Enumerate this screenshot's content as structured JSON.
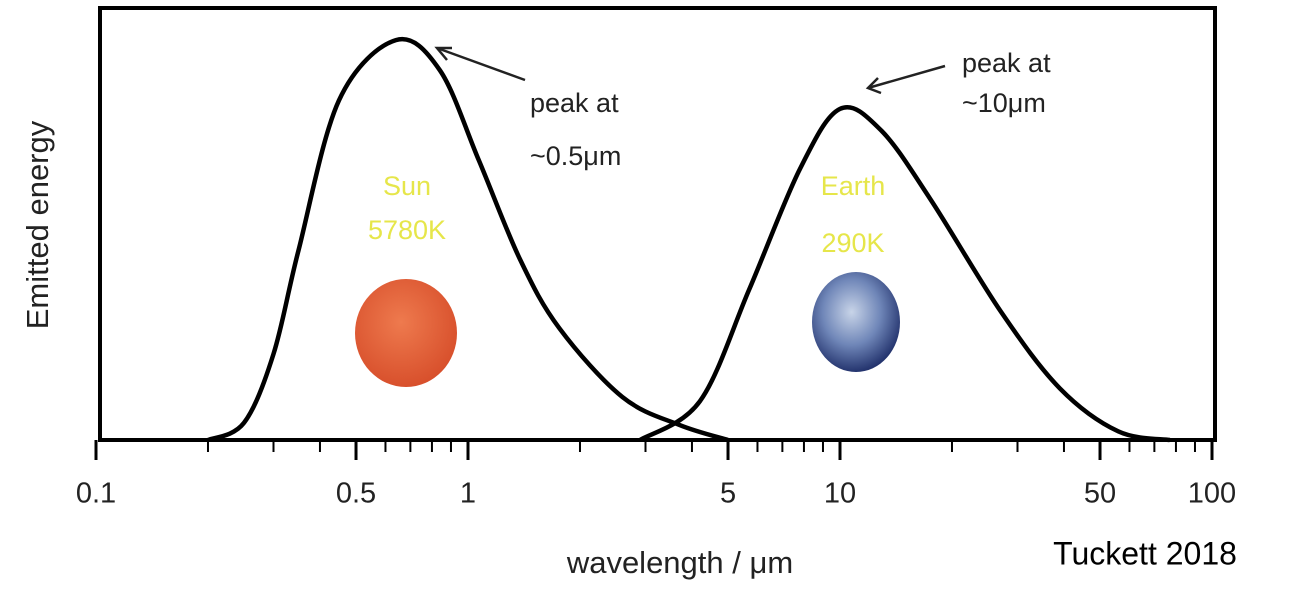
{
  "chart_data": {
    "type": "line",
    "xlabel": "wavelength / μm",
    "ylabel": "Emitted energy",
    "xscale": "log",
    "xlim": [
      0.1,
      100
    ],
    "xticks": [
      0.1,
      0.5,
      1,
      5,
      10,
      50,
      100
    ],
    "minor_xticks": [
      0.2,
      0.3,
      0.4,
      0.6,
      0.7,
      0.8,
      0.9,
      2,
      3,
      4,
      6,
      7,
      8,
      9,
      20,
      30,
      40,
      60,
      70,
      80,
      90
    ],
    "ylim": [
      0,
      1
    ],
    "series": [
      {
        "name": "Sun",
        "temperature": "5780K",
        "color": "#000000",
        "label_color": "#e6e64a",
        "annotation": [
          "peak at",
          "~0.5μm"
        ],
        "x": [
          0.2,
          0.25,
          0.3,
          0.35,
          0.45,
          0.64,
          0.84,
          1.07,
          1.38,
          1.76,
          2.6,
          3.7,
          5
        ],
        "values": [
          0,
          0.04,
          0.2,
          0.44,
          0.79,
          0.93,
          0.86,
          0.65,
          0.42,
          0.26,
          0.1,
          0.035,
          0
        ]
      },
      {
        "name": "Earth",
        "temperature": "290K",
        "color": "#000000",
        "label_color": "#e6e64a",
        "annotation": [
          "peak at",
          "~10μm"
        ],
        "x": [
          2.9,
          4.2,
          5.7,
          7.8,
          10,
          12.9,
          17.5,
          27,
          39,
          56,
          77
        ],
        "values": [
          0,
          0.09,
          0.35,
          0.63,
          0.77,
          0.72,
          0.56,
          0.3,
          0.12,
          0.02,
          0
        ]
      }
    ],
    "credit": "Tuckett 2018"
  }
}
